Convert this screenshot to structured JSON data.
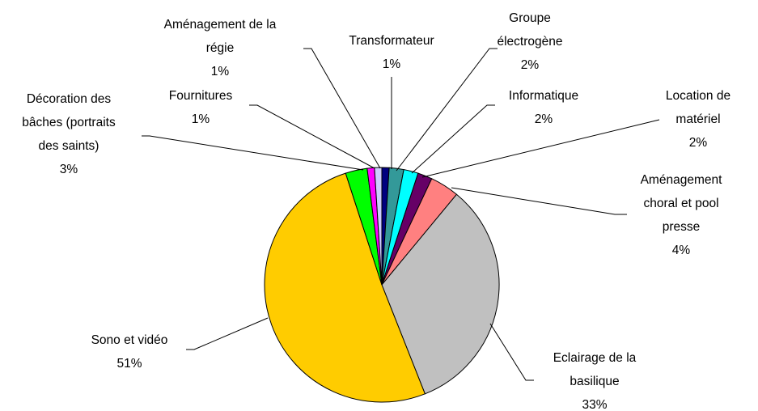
{
  "chart_data": {
    "type": "pie",
    "categories": [
      "Transformateur",
      "Groupe électrogène",
      "Informatique",
      "Location de matériel",
      "Aménagement choral et pool presse",
      "Eclairage de la basilique",
      "Sono et vidéo",
      "Décoration des bâches (portraits des saints)",
      "Fournitures",
      "Aménagement de la régie"
    ],
    "values": [
      1,
      2,
      2,
      2,
      4,
      33,
      51,
      3,
      1,
      1
    ],
    "value_labels": [
      "1%",
      "2%",
      "2%",
      "2%",
      "4%",
      "33%",
      "51%",
      "3%",
      "1%",
      "1%"
    ],
    "colors": [
      "#000080",
      "#339999",
      "#00ffff",
      "#660066",
      "#ff8080",
      "#c0c0c0",
      "#ffcc00",
      "#00ff00",
      "#ff00ff",
      "#ccccff"
    ]
  }
}
